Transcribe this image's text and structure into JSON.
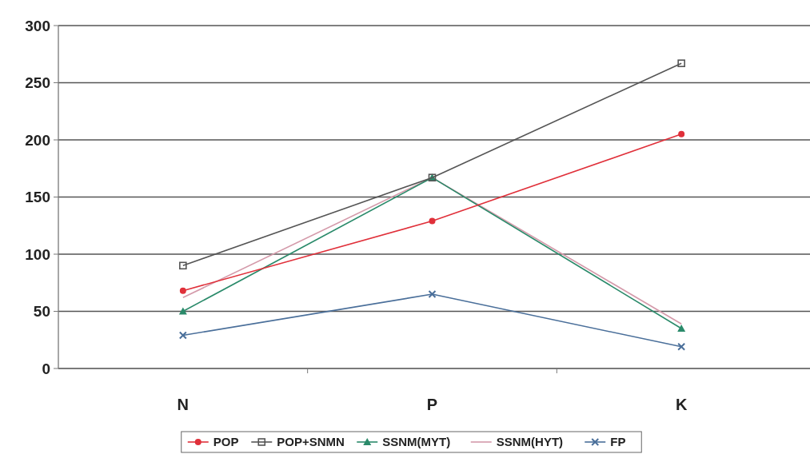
{
  "chart_data": {
    "type": "line",
    "categories": [
      "N",
      "P",
      "K"
    ],
    "series": [
      {
        "name": "POP",
        "color": "#e0303a",
        "marker": "circle",
        "values": [
          68,
          129,
          205
        ]
      },
      {
        "name": "POP+SNMN",
        "color": "#555555",
        "marker": "square",
        "values": [
          90,
          167,
          267
        ]
      },
      {
        "name": "SSNM(MYT)",
        "color": "#2a8a6a",
        "marker": "triangle",
        "values": [
          50,
          167,
          35
        ]
      },
      {
        "name": "SSNM(HYT)",
        "color": "#d49aaa",
        "marker": "none",
        "values": [
          62,
          167,
          39
        ]
      },
      {
        "name": "FP",
        "color": "#4a6f9a",
        "marker": "cross",
        "values": [
          29,
          65,
          19
        ]
      }
    ],
    "ylim": [
      0,
      300
    ],
    "yticks": [
      0,
      50,
      100,
      150,
      200,
      250,
      300
    ],
    "grid": "y",
    "legend": "bottom"
  }
}
